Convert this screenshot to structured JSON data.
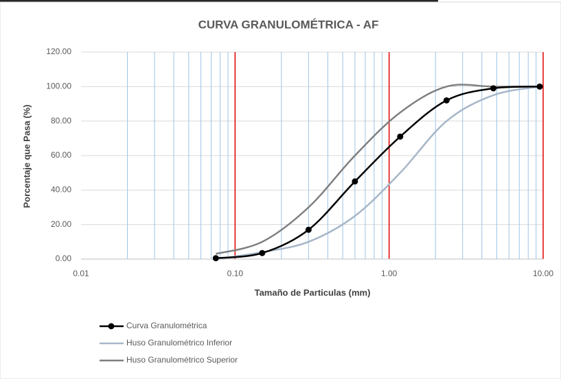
{
  "chart_data": {
    "type": "scatter",
    "title": "CURVA GRANULOMÉTRICA - AF",
    "x_label": "Tamaño de Particulas (mm)",
    "y_label": "Porcentaje que Pasa (%)",
    "log_x": true,
    "smooth": true,
    "xlim": [
      0.01,
      10
    ],
    "ylim": [
      0,
      120
    ],
    "xticks": [
      0.01,
      {
        "value": 0.1,
        "label": "0.10"
      },
      {
        "value": 1,
        "label": "1.00"
      },
      {
        "value": 10,
        "label": "10.00"
      }
    ],
    "yticks": [
      {
        "value": 0,
        "label": "0.00"
      },
      {
        "value": 20,
        "label": "20.00"
      },
      {
        "value": 40,
        "label": "40.00"
      },
      {
        "value": 60,
        "label": "60.00"
      },
      {
        "value": 80,
        "label": "80.00"
      },
      {
        "value": 100,
        "label": "100.00"
      },
      {
        "value": 120,
        "label": "120.00"
      }
    ],
    "grid": true,
    "minor_grid_color": "#9dc3e6",
    "major_grid_color": "#e00000",
    "legend": "bottom-left",
    "series": [
      {
        "name": "Curva Granulométrica",
        "color": "#000000",
        "marker": true,
        "x": [
          0.075,
          0.15,
          0.3,
          0.6,
          1.18,
          2.36,
          4.75,
          9.5
        ],
        "values": [
          0.5,
          3.5,
          17,
          45,
          71,
          92,
          99,
          100
        ]
      },
      {
        "name": "Huso Granulométrico Inferior",
        "color": "#a6b6c8",
        "marker": false,
        "x": [
          0.075,
          0.15,
          0.3,
          0.6,
          1.18,
          2.36,
          4.75,
          9.5
        ],
        "values": [
          0,
          4,
          10,
          25,
          50,
          80,
          95,
          100
        ]
      },
      {
        "name": "Huso Granulométrico Superior",
        "color": "#7f7f7f",
        "marker": false,
        "x": [
          0.075,
          0.15,
          0.3,
          0.6,
          1.18,
          2.36,
          4.75,
          9.5
        ],
        "values": [
          3,
          10,
          30,
          60,
          85,
          100,
          100,
          100
        ]
      }
    ]
  }
}
